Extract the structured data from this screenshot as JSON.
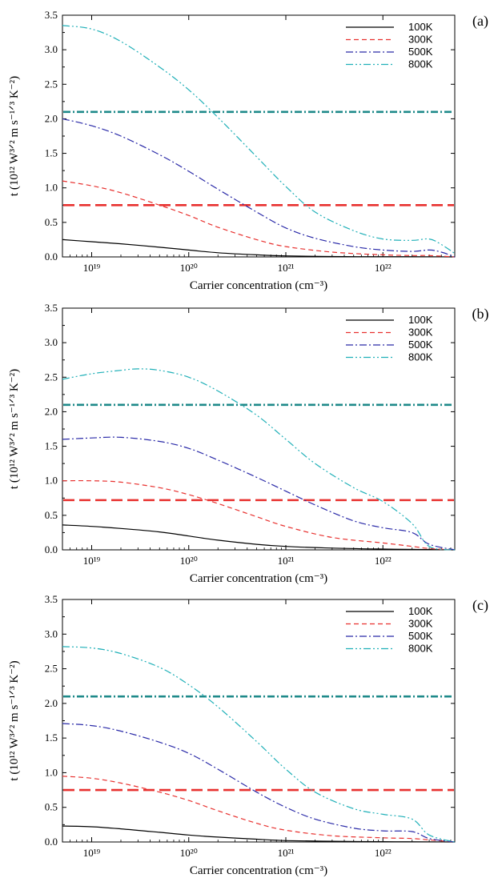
{
  "chart_data": [
    {
      "type": "line",
      "panel_label": "(a)",
      "xlabel": "Carrier concentration (cm⁻³)",
      "ylabel": "t (10¹² W³ᐟ² m s⁻¹ᐟ³ K⁻²)",
      "x_scale": "log",
      "xlim": [
        5e+18,
        5.5e+22
      ],
      "ylim": [
        0,
        3.5
      ],
      "x_ticks": [
        "10¹⁹",
        "10²⁰",
        "10²¹",
        "10²²"
      ],
      "y_ticks": [
        "0.0",
        "0.5",
        "1.0",
        "1.5",
        "2.0",
        "2.5",
        "3.0",
        "3.5"
      ],
      "legend_position": "top-right",
      "grid": false,
      "series": [
        {
          "name": "100K",
          "color": "#000000",
          "dash": "solid",
          "x": [
            5e+18,
            1e+19,
            2e+19,
            5e+19,
            1e+20,
            2e+20,
            5e+20,
            1e+21,
            3e+21,
            1e+22,
            3e+22,
            5.5e+22
          ],
          "y": [
            0.25,
            0.22,
            0.19,
            0.14,
            0.1,
            0.06,
            0.03,
            0.015,
            0.006,
            0.003,
            0.002,
            0.0
          ]
        },
        {
          "name": "300K",
          "color": "#e8312f",
          "dash": "dashed",
          "x": [
            5e+18,
            1e+19,
            2e+19,
            5e+19,
            1e+20,
            2e+20,
            5e+20,
            1e+21,
            3e+21,
            1e+22,
            2e+22,
            3e+22,
            5.5e+22
          ],
          "y": [
            1.1,
            1.03,
            0.93,
            0.75,
            0.6,
            0.43,
            0.25,
            0.15,
            0.07,
            0.03,
            0.02,
            0.02,
            0.0
          ]
        },
        {
          "name": "500K",
          "color": "#2a2aa8",
          "dash": "dashdot",
          "x": [
            5e+18,
            1e+19,
            2e+19,
            5e+19,
            1e+20,
            2e+20,
            5e+20,
            1e+21,
            2e+21,
            5e+21,
            1e+22,
            2e+22,
            3e+22,
            4e+22,
            5.5e+22
          ],
          "y": [
            2.0,
            1.9,
            1.75,
            1.48,
            1.24,
            0.98,
            0.65,
            0.42,
            0.27,
            0.15,
            0.1,
            0.08,
            0.1,
            0.07,
            0.0
          ]
        },
        {
          "name": "800K",
          "color": "#20b0b8",
          "dash": "dashdotdot",
          "x": [
            5e+18,
            1e+19,
            2e+19,
            5e+19,
            1e+20,
            2e+20,
            5e+20,
            1e+21,
            2e+21,
            5e+21,
            1e+22,
            2e+22,
            3e+22,
            4e+22,
            5.5e+22
          ],
          "y": [
            3.35,
            3.3,
            3.12,
            2.75,
            2.42,
            2.02,
            1.45,
            1.02,
            0.65,
            0.38,
            0.26,
            0.24,
            0.26,
            0.18,
            0.05
          ]
        }
      ],
      "reference_lines": [
        {
          "y": 0.75,
          "color": "#e8312f",
          "dash": "longdash"
        },
        {
          "y": 2.1,
          "color": "#1f8a8a",
          "dash": "dashdot"
        }
      ]
    },
    {
      "type": "line",
      "panel_label": "(b)",
      "xlabel": "Carrier concentration (cm⁻³)",
      "ylabel": "t (10¹² W³ᐟ² m s⁻¹ᐟ³ K⁻²)",
      "x_scale": "log",
      "xlim": [
        5e+18,
        5.5e+22
      ],
      "ylim": [
        0,
        3.5
      ],
      "x_ticks": [
        "10¹⁹",
        "10²⁰",
        "10²¹",
        "10²²"
      ],
      "y_ticks": [
        "0.0",
        "0.5",
        "1.0",
        "1.5",
        "2.0",
        "2.5",
        "3.0",
        "3.5"
      ],
      "legend_position": "top-right",
      "grid": false,
      "series": [
        {
          "name": "100K",
          "color": "#000000",
          "dash": "solid",
          "x": [
            5e+18,
            1e+19,
            2e+19,
            5e+19,
            1e+20,
            2e+20,
            5e+20,
            1e+21,
            3e+21,
            1e+22,
            3e+22,
            5.5e+22
          ],
          "y": [
            0.36,
            0.34,
            0.31,
            0.26,
            0.2,
            0.14,
            0.08,
            0.05,
            0.025,
            0.012,
            0.005,
            0.0
          ]
        },
        {
          "name": "300K",
          "color": "#e8312f",
          "dash": "dashed",
          "x": [
            5e+18,
            1e+19,
            2e+19,
            5e+19,
            1e+20,
            2e+20,
            5e+20,
            1e+21,
            3e+21,
            1e+22,
            2e+22,
            3e+22,
            5.5e+22
          ],
          "y": [
            1.0,
            1.0,
            0.98,
            0.9,
            0.8,
            0.67,
            0.48,
            0.34,
            0.18,
            0.1,
            0.05,
            0.02,
            0.0
          ]
        },
        {
          "name": "500K",
          "color": "#2a2aa8",
          "dash": "dashdot",
          "x": [
            5e+18,
            1e+19,
            2e+19,
            5e+19,
            1e+20,
            2e+20,
            5e+20,
            1e+21,
            2e+21,
            5e+21,
            1e+22,
            2e+22,
            3e+22,
            5.5e+22
          ],
          "y": [
            1.6,
            1.62,
            1.63,
            1.57,
            1.47,
            1.3,
            1.05,
            0.85,
            0.65,
            0.42,
            0.32,
            0.25,
            0.08,
            0.0
          ]
        },
        {
          "name": "800K",
          "color": "#20b0b8",
          "dash": "dashdotdot",
          "x": [
            5e+18,
            1e+19,
            2e+19,
            3e+19,
            5e+19,
            1e+20,
            2e+20,
            5e+20,
            1e+21,
            2e+21,
            5e+21,
            1e+22,
            2e+22,
            3e+22,
            5.5e+22
          ],
          "y": [
            2.47,
            2.55,
            2.6,
            2.62,
            2.6,
            2.5,
            2.3,
            1.95,
            1.6,
            1.25,
            0.9,
            0.7,
            0.38,
            0.05,
            0.0
          ]
        }
      ],
      "reference_lines": [
        {
          "y": 0.72,
          "color": "#e8312f",
          "dash": "longdash"
        },
        {
          "y": 2.1,
          "color": "#1f8a8a",
          "dash": "dashdot"
        }
      ]
    },
    {
      "type": "line",
      "panel_label": "(c)",
      "xlabel": "Carrier concentration (cm⁻³)",
      "ylabel": "t (10¹² W³ᐟ² m s⁻¹ᐟ³ K⁻²)",
      "x_scale": "log",
      "xlim": [
        5e+18,
        5.5e+22
      ],
      "ylim": [
        0,
        3.5
      ],
      "x_ticks": [
        "10¹⁹",
        "10²⁰",
        "10²¹",
        "10²²"
      ],
      "y_ticks": [
        "0.0",
        "0.5",
        "1.0",
        "1.5",
        "2.0",
        "2.5",
        "3.0",
        "3.5"
      ],
      "legend_position": "top-right",
      "grid": false,
      "series": [
        {
          "name": "100K",
          "color": "#000000",
          "dash": "solid",
          "x": [
            5e+18,
            1e+19,
            2e+19,
            5e+19,
            1e+20,
            2e+20,
            5e+20,
            1e+21,
            3e+21,
            1e+22,
            3e+22,
            5.5e+22
          ],
          "y": [
            0.23,
            0.22,
            0.19,
            0.14,
            0.1,
            0.07,
            0.04,
            0.02,
            0.01,
            0.005,
            0.002,
            0.0
          ]
        },
        {
          "name": "300K",
          "color": "#e8312f",
          "dash": "dashed",
          "x": [
            5e+18,
            1e+19,
            2e+19,
            5e+19,
            1e+20,
            2e+20,
            5e+20,
            1e+21,
            3e+21,
            1e+22,
            2e+22,
            3e+22,
            5.5e+22
          ],
          "y": [
            0.95,
            0.92,
            0.85,
            0.72,
            0.6,
            0.45,
            0.27,
            0.17,
            0.09,
            0.06,
            0.05,
            0.03,
            0.0
          ]
        },
        {
          "name": "500K",
          "color": "#2a2aa8",
          "dash": "dashdot",
          "x": [
            5e+18,
            1e+19,
            2e+19,
            5e+19,
            1e+20,
            2e+20,
            5e+20,
            1e+21,
            2e+21,
            5e+21,
            1e+22,
            2e+22,
            3e+22,
            5.5e+22
          ],
          "y": [
            1.71,
            1.68,
            1.6,
            1.44,
            1.28,
            1.05,
            0.72,
            0.5,
            0.33,
            0.2,
            0.16,
            0.15,
            0.05,
            0.0
          ]
        },
        {
          "name": "800K",
          "color": "#20b0b8",
          "dash": "dashdotdot",
          "x": [
            5e+18,
            1e+19,
            2e+19,
            5e+19,
            1e+20,
            2e+20,
            5e+20,
            1e+21,
            2e+21,
            5e+21,
            1e+22,
            2e+22,
            3e+22,
            5.5e+22
          ],
          "y": [
            2.82,
            2.8,
            2.72,
            2.52,
            2.27,
            1.95,
            1.45,
            1.05,
            0.72,
            0.48,
            0.4,
            0.33,
            0.1,
            0.0
          ]
        }
      ],
      "reference_lines": [
        {
          "y": 0.75,
          "color": "#e8312f",
          "dash": "longdash"
        },
        {
          "y": 2.1,
          "color": "#1f8a8a",
          "dash": "dashdot"
        }
      ]
    }
  ]
}
